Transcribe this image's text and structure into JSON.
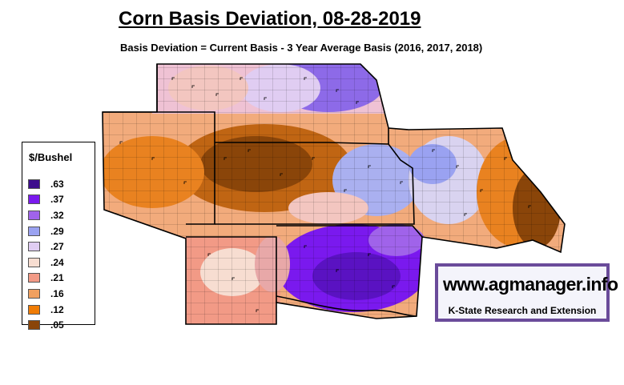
{
  "title": "Corn Basis Deviation, 08-28-2019",
  "subtitle": "Basis Deviation = Current Basis - 3 Year Average Basis (2016, 2017, 2018)",
  "legend": {
    "title": "$/Bushel",
    "items": [
      {
        "label": ".63",
        "color": "#3d0e8c"
      },
      {
        "label": ".37",
        "color": "#7a19ee"
      },
      {
        "label": ".32",
        "color": "#a063ea"
      },
      {
        "label": ".29",
        "color": "#9aa2f1"
      },
      {
        "label": ".27",
        "color": "#e0cdf2"
      },
      {
        "label": ".24",
        "color": "#f7ddd1"
      },
      {
        "label": ".21",
        "color": "#f29a86"
      },
      {
        "label": ".16",
        "color": "#f0a060"
      },
      {
        "label": ".12",
        "color": "#f07c05"
      },
      {
        "label": ".05",
        "color": "#8a4509"
      }
    ]
  },
  "logo": {
    "url": "www.agmanager.info",
    "org": "K-State Research and Extension"
  }
}
